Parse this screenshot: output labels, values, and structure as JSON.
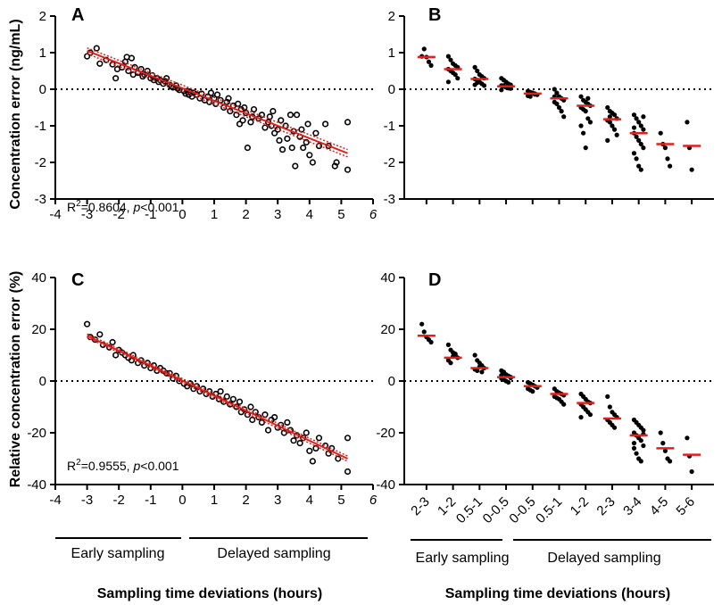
{
  "chart_data": [
    {
      "panel": "A",
      "type": "scatter",
      "ylabel": "Concentration error (ng/mL)",
      "xlabel": "Sampling time deviations (hours)",
      "xlim": [
        -4,
        6
      ],
      "ylim": [
        -3,
        2
      ],
      "xticks": [
        "-4",
        "-3",
        "-2",
        "-1",
        "0",
        "1",
        "2",
        "3",
        "4",
        "5",
        "6"
      ],
      "yticks": [
        "2",
        "1",
        "0",
        "-1",
        "-2",
        "-3"
      ],
      "reference_line_y": 0,
      "fit": {
        "x": [
          -3,
          5.2
        ],
        "y": [
          1.05,
          -1.75
        ],
        "ci_lower": [
          0.97,
          -1.85
        ],
        "ci_upper": [
          1.13,
          -1.65
        ]
      },
      "annotation": {
        "r2_prefix": "R",
        "r2_sup": "2",
        "r2_value": "=0.8604, ",
        "p_letter": "p",
        "p_value": "<0.001"
      },
      "points": [
        [
          -3,
          0.9
        ],
        [
          -2.9,
          1.0
        ],
        [
          -2.7,
          1.12
        ],
        [
          -2.6,
          0.7
        ],
        [
          -2.4,
          0.8
        ],
        [
          -2.2,
          0.68
        ],
        [
          -2.1,
          0.3
        ],
        [
          -2.05,
          0.55
        ],
        [
          -1.9,
          0.6
        ],
        [
          -1.8,
          0.75
        ],
        [
          -1.75,
          0.88
        ],
        [
          -1.7,
          0.5
        ],
        [
          -1.6,
          0.85
        ],
        [
          -1.55,
          0.4
        ],
        [
          -1.5,
          0.6
        ],
        [
          -1.4,
          0.45
        ],
        [
          -1.3,
          0.55
        ],
        [
          -1.25,
          0.35
        ],
        [
          -1.2,
          0.4
        ],
        [
          -1.1,
          0.5
        ],
        [
          -1.0,
          0.3
        ],
        [
          -0.95,
          0.38
        ],
        [
          -0.9,
          0.25
        ],
        [
          -0.8,
          0.3
        ],
        [
          -0.75,
          0.2
        ],
        [
          -0.7,
          0.25
        ],
        [
          -0.6,
          0.15
        ],
        [
          -0.55,
          0.22
        ],
        [
          -0.5,
          0.3
        ],
        [
          -0.4,
          0.12
        ],
        [
          -0.35,
          0.08
        ],
        [
          -0.3,
          0.05
        ],
        [
          -0.2,
          0.1
        ],
        [
          -0.15,
          0.02
        ],
        [
          -0.1,
          -0.02
        ],
        [
          0.05,
          -0.05
        ],
        [
          0.1,
          -0.12
        ],
        [
          0.15,
          -0.05
        ],
        [
          0.2,
          -0.15
        ],
        [
          0.25,
          -0.08
        ],
        [
          0.3,
          -0.2
        ],
        [
          0.35,
          -0.1
        ],
        [
          0.45,
          -0.15
        ],
        [
          0.55,
          -0.25
        ],
        [
          0.6,
          -0.12
        ],
        [
          0.7,
          -0.3
        ],
        [
          0.8,
          -0.2
        ],
        [
          0.85,
          -0.35
        ],
        [
          0.9,
          -0.1
        ],
        [
          1.0,
          -0.25
        ],
        [
          1.05,
          -0.4
        ],
        [
          1.1,
          -0.15
        ],
        [
          1.2,
          -0.3
        ],
        [
          1.3,
          -0.5
        ],
        [
          1.4,
          -0.35
        ],
        [
          1.45,
          -0.25
        ],
        [
          1.5,
          -0.6
        ],
        [
          1.6,
          -0.45
        ],
        [
          1.7,
          -0.7
        ],
        [
          1.75,
          -0.4
        ],
        [
          1.8,
          -0.95
        ],
        [
          1.85,
          -0.55
        ],
        [
          1.9,
          -0.85
        ],
        [
          1.95,
          -0.5
        ],
        [
          2.0,
          -0.65
        ],
        [
          2.05,
          -1.6
        ],
        [
          2.15,
          -0.9
        ],
        [
          2.2,
          -0.75
        ],
        [
          2.25,
          -0.55
        ],
        [
          2.4,
          -0.8
        ],
        [
          2.5,
          -0.7
        ],
        [
          2.6,
          -1.05
        ],
        [
          2.7,
          -0.9
        ],
        [
          2.75,
          -0.75
        ],
        [
          2.8,
          -1.0
        ],
        [
          2.85,
          -0.6
        ],
        [
          2.9,
          -1.2
        ],
        [
          3.0,
          -1.1
        ],
        [
          3.05,
          -1.4
        ],
        [
          3.1,
          -0.85
        ],
        [
          3.15,
          -1.65
        ],
        [
          3.25,
          -1.0
        ],
        [
          3.3,
          -1.35
        ],
        [
          3.4,
          -0.7
        ],
        [
          3.45,
          -1.6
        ],
        [
          3.5,
          -1.15
        ],
        [
          3.55,
          -2.1
        ],
        [
          3.6,
          -0.7
        ],
        [
          3.7,
          -1.3
        ],
        [
          3.75,
          -1.1
        ],
        [
          3.8,
          -1.6
        ],
        [
          3.9,
          -1.45
        ],
        [
          3.95,
          -0.95
        ],
        [
          4.0,
          -1.8
        ],
        [
          4.1,
          -2.0
        ],
        [
          4.2,
          -1.2
        ],
        [
          4.3,
          -1.55
        ],
        [
          4.5,
          -0.95
        ],
        [
          4.6,
          -1.55
        ],
        [
          4.8,
          -2.1
        ],
        [
          4.85,
          -2.0
        ],
        [
          5.2,
          -0.9
        ],
        [
          5.2,
          -2.2
        ]
      ]
    },
    {
      "panel": "B",
      "type": "scatter",
      "xlabel": "Sampling time deviations (hours)",
      "ylim": [
        -3,
        2
      ],
      "yticks": [
        "2",
        "1",
        "0",
        "-1",
        "-2",
        "-3"
      ],
      "categories": [
        "2-3",
        "1-2",
        "0.5-1",
        "0-0.5",
        "0-0.5",
        "0.5-1",
        "1-2",
        "2-3",
        "3-4",
        "4-5",
        "5-6"
      ],
      "medians": [
        0.88,
        0.55,
        0.28,
        0.08,
        -0.12,
        -0.25,
        -0.45,
        -0.82,
        -1.2,
        -1.5,
        -1.55
      ],
      "groups": [
        [
          0.9,
          1.1,
          0.88,
          0.75,
          0.65
        ],
        [
          0.9,
          0.8,
          0.7,
          0.65,
          0.6,
          0.55,
          0.5,
          0.45,
          0.4,
          0.3,
          0.2
        ],
        [
          0.6,
          0.5,
          0.4,
          0.35,
          0.3,
          0.28,
          0.25,
          0.2,
          0.15,
          0.1,
          0.12,
          0.18
        ],
        [
          0.3,
          0.25,
          0.2,
          0.15,
          0.12,
          0.1,
          0.08,
          0.05,
          0.03,
          0.02,
          -0.02,
          0.1,
          0.06,
          0.14
        ],
        [
          -0.05,
          -0.08,
          -0.1,
          -0.12,
          -0.15,
          -0.18,
          -0.2,
          -0.1,
          -0.14
        ],
        [
          0.0,
          -0.1,
          -0.2,
          -0.25,
          -0.3,
          -0.35,
          -0.4,
          -0.5,
          -0.6,
          -0.75,
          -0.2
        ],
        [
          -0.2,
          -0.3,
          -0.35,
          -0.4,
          -0.45,
          -0.5,
          -0.55,
          -0.6,
          -0.8,
          -0.9,
          -1.0,
          -1.2,
          -1.6,
          -0.25
        ],
        [
          -0.5,
          -0.6,
          -0.65,
          -0.7,
          -0.8,
          -0.85,
          -0.9,
          -1.0,
          -1.1,
          -1.25,
          -1.4,
          -0.75
        ],
        [
          -0.7,
          -0.8,
          -0.9,
          -1.0,
          -1.1,
          -1.2,
          -1.3,
          -1.4,
          -1.5,
          -1.6,
          -1.75,
          -1.9,
          -2.1,
          -2.2,
          -0.75,
          -1.05
        ],
        [
          -1.2,
          -1.5,
          -1.6,
          -1.9,
          -2.1
        ],
        [
          -0.9,
          -1.6,
          -2.2
        ]
      ],
      "reference_line_y": 0,
      "group_labels": [
        "Early sampling",
        "Delayed sampling"
      ]
    },
    {
      "panel": "C",
      "type": "scatter",
      "ylabel": "Relative concentration error (%)",
      "xlabel": "Sampling time deviations (hours)",
      "xlim": [
        -4,
        6
      ],
      "ylim": [
        -40,
        40
      ],
      "xticks": [
        "-4",
        "-3",
        "-2",
        "-1",
        "0",
        "1",
        "2",
        "3",
        "4",
        "5",
        "6"
      ],
      "yticks": [
        "40",
        "20",
        "0",
        "-20",
        "-40"
      ],
      "reference_line_y": 0,
      "fit": {
        "x": [
          -3,
          5.2
        ],
        "y": [
          17.5,
          -30
        ],
        "ci_lower": [
          16.8,
          -31
        ],
        "ci_upper": [
          18.2,
          -29
        ]
      },
      "annotation": {
        "r2_prefix": "R",
        "r2_sup": "2",
        "r2_value": "=0.9555, ",
        "p_letter": "p",
        "p_value": "<0.001"
      },
      "group_labels": [
        "Early sampling",
        "Delayed sampling"
      ],
      "points": [
        [
          -3,
          22
        ],
        [
          -2.9,
          17
        ],
        [
          -2.75,
          16
        ],
        [
          -2.6,
          18
        ],
        [
          -2.5,
          14
        ],
        [
          -2.3,
          13
        ],
        [
          -2.2,
          15
        ],
        [
          -2.1,
          10
        ],
        [
          -2.0,
          12
        ],
        [
          -1.9,
          11
        ],
        [
          -1.8,
          10
        ],
        [
          -1.7,
          9
        ],
        [
          -1.6,
          8
        ],
        [
          -1.55,
          10
        ],
        [
          -1.4,
          7
        ],
        [
          -1.3,
          8
        ],
        [
          -1.2,
          6
        ],
        [
          -1.1,
          7
        ],
        [
          -1.0,
          5
        ],
        [
          -0.9,
          6
        ],
        [
          -0.8,
          4
        ],
        [
          -0.7,
          5
        ],
        [
          -0.6,
          4
        ],
        [
          -0.5,
          3
        ],
        [
          -0.4,
          3
        ],
        [
          -0.3,
          1
        ],
        [
          -0.2,
          2
        ],
        [
          -0.1,
          0
        ],
        [
          0.05,
          -1
        ],
        [
          0.15,
          -2
        ],
        [
          0.25,
          -1
        ],
        [
          0.35,
          -3
        ],
        [
          0.45,
          -2
        ],
        [
          0.55,
          -4
        ],
        [
          0.65,
          -3
        ],
        [
          0.75,
          -5
        ],
        [
          0.85,
          -4
        ],
        [
          0.95,
          -6
        ],
        [
          1.05,
          -5
        ],
        [
          1.15,
          -7
        ],
        [
          1.2,
          -4
        ],
        [
          1.3,
          -8
        ],
        [
          1.4,
          -6
        ],
        [
          1.5,
          -9
        ],
        [
          1.6,
          -7
        ],
        [
          1.7,
          -10
        ],
        [
          1.8,
          -8
        ],
        [
          1.85,
          -12
        ],
        [
          1.95,
          -11
        ],
        [
          2.05,
          -13
        ],
        [
          2.15,
          -10
        ],
        [
          2.2,
          -15
        ],
        [
          2.3,
          -12
        ],
        [
          2.4,
          -14
        ],
        [
          2.5,
          -16
        ],
        [
          2.6,
          -13
        ],
        [
          2.7,
          -19
        ],
        [
          2.8,
          -15
        ],
        [
          2.9,
          -14
        ],
        [
          3.0,
          -18
        ],
        [
          3.1,
          -17
        ],
        [
          3.2,
          -20
        ],
        [
          3.3,
          -16
        ],
        [
          3.4,
          -19
        ],
        [
          3.5,
          -23
        ],
        [
          3.6,
          -21
        ],
        [
          3.7,
          -24
        ],
        [
          3.8,
          -22
        ],
        [
          3.9,
          -20
        ],
        [
          4.0,
          -27
        ],
        [
          4.1,
          -31
        ],
        [
          4.2,
          -26
        ],
        [
          4.3,
          -22
        ],
        [
          4.5,
          -25
        ],
        [
          4.6,
          -28
        ],
        [
          4.7,
          -26
        ],
        [
          4.9,
          -30
        ],
        [
          5.2,
          -22
        ],
        [
          5.2,
          -35
        ]
      ]
    },
    {
      "panel": "D",
      "type": "scatter",
      "xlabel": "Sampling time deviations (hours)",
      "ylim": [
        -40,
        40
      ],
      "yticks": [
        "40",
        "20",
        "0",
        "-20",
        "-40"
      ],
      "categories": [
        "2-3",
        "1-2",
        "0.5-1",
        "0-0.5",
        "0-0.5",
        "0.5-1",
        "1-2",
        "2-3",
        "3-4",
        "4-5",
        "5-6"
      ],
      "medians": [
        17.5,
        9,
        5,
        1.5,
        -2,
        -5,
        -8.5,
        -14.5,
        -21,
        -26,
        -28.5
      ],
      "groups": [
        [
          22,
          19,
          17,
          16,
          15
        ],
        [
          14,
          12,
          11,
          10,
          9,
          8,
          7,
          9.5,
          10.5
        ],
        [
          10,
          8,
          7,
          6,
          5,
          4.5,
          4,
          5.5,
          3.5
        ],
        [
          4,
          3,
          2.5,
          2,
          1.5,
          1,
          0.5,
          0,
          -0.5,
          1.2,
          2.2,
          3.5
        ],
        [
          -0.5,
          -1,
          -1.5,
          -2,
          -2.5,
          -3,
          -3.5,
          -4
        ],
        [
          -3,
          -4,
          -4.5,
          -5,
          -5.5,
          -6,
          -6.5,
          -7,
          -8,
          -9
        ],
        [
          -5,
          -6,
          -7,
          -8,
          -8.5,
          -9,
          -10,
          -11,
          -12,
          -13,
          -14
        ],
        [
          -6,
          -10,
          -12,
          -13,
          -14,
          -15,
          -16,
          -17,
          -18
        ],
        [
          -15,
          -16,
          -17,
          -18,
          -19,
          -20,
          -21,
          -22,
          -23,
          -25,
          -26,
          -28,
          -30,
          -31,
          -20.5,
          -24
        ],
        [
          -20,
          -24,
          -27,
          -30,
          -31
        ],
        [
          -22,
          -29,
          -35
        ]
      ],
      "reference_line_y": 0,
      "group_labels": [
        "Early sampling",
        "Delayed sampling"
      ]
    }
  ]
}
